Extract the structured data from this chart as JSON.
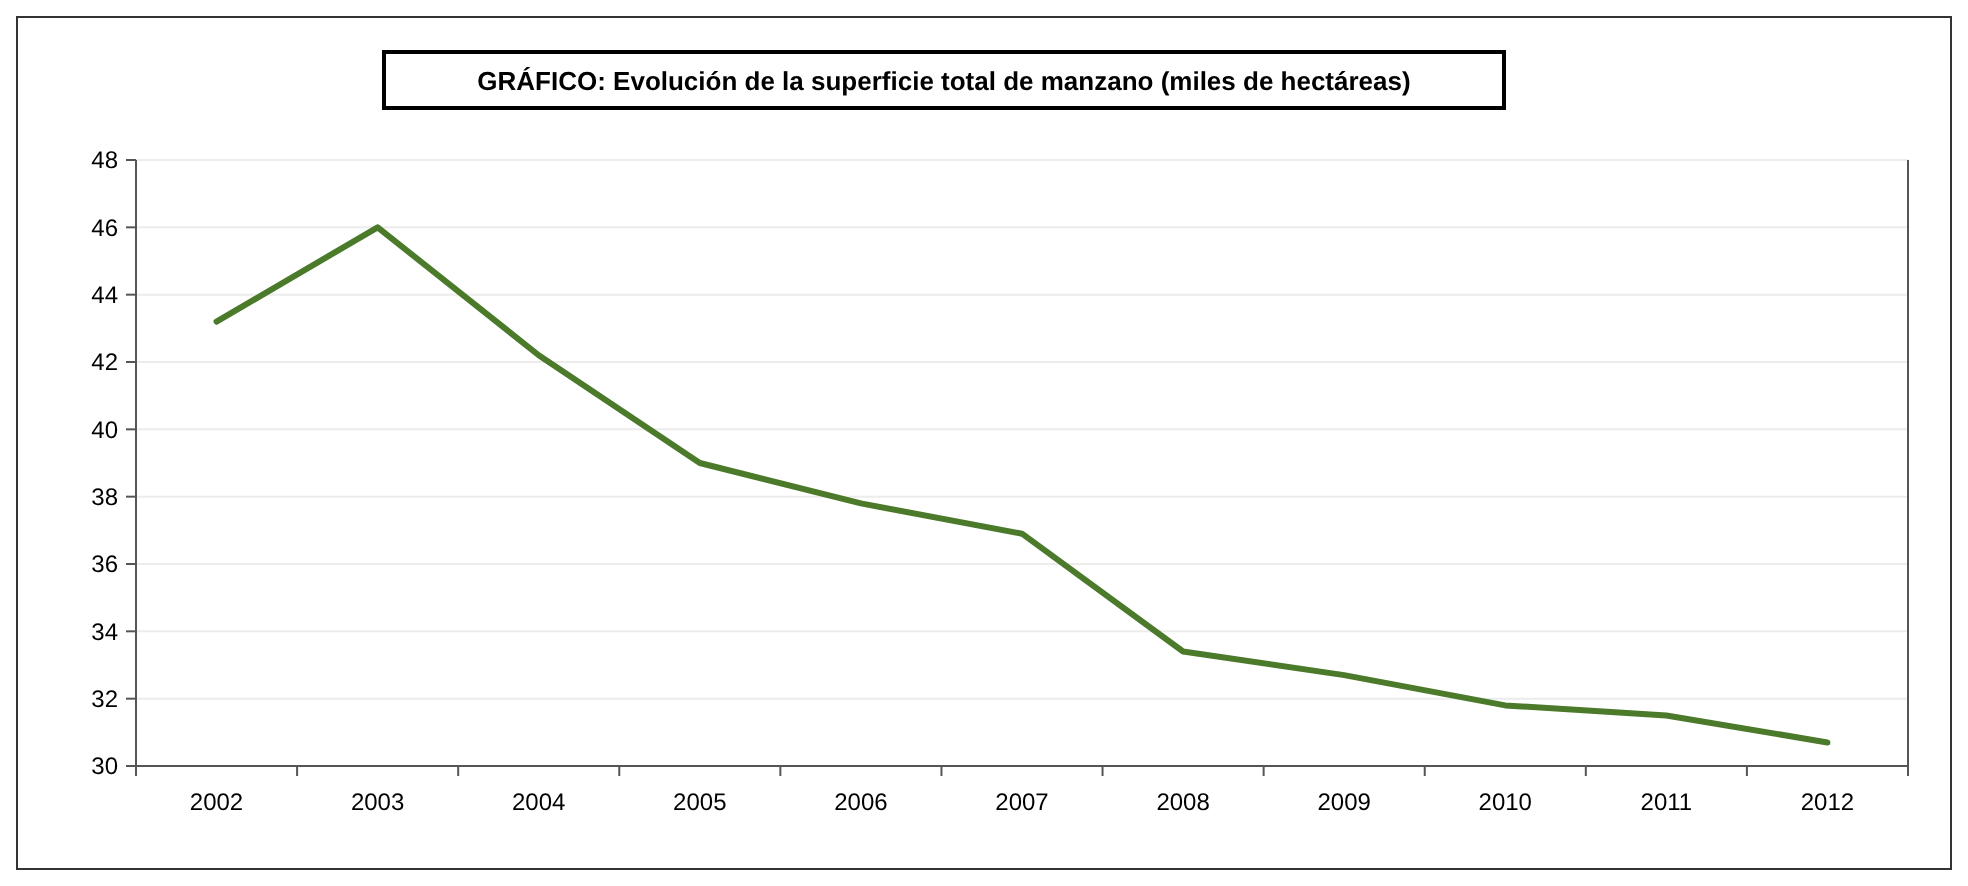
{
  "chart_data": {
    "type": "line",
    "title": "GRÁFICO: Evolución de la superficie total de manzano (miles de hectáreas)",
    "categories": [
      "2002",
      "2003",
      "2004",
      "2005",
      "2006",
      "2007",
      "2008",
      "2009",
      "2010",
      "2011",
      "2012"
    ],
    "series": [
      {
        "color": "#4a7a2a",
        "values": [
          43.2,
          46.0,
          42.2,
          39.0,
          37.8,
          36.9,
          33.4,
          32.7,
          31.8,
          31.5,
          30.7
        ]
      }
    ],
    "ylim": [
      30,
      48
    ],
    "yticks": [
      30,
      32,
      34,
      36,
      38,
      40,
      42,
      44,
      46,
      48
    ],
    "grid": "y",
    "marker": "none",
    "line_style": "solid"
  }
}
